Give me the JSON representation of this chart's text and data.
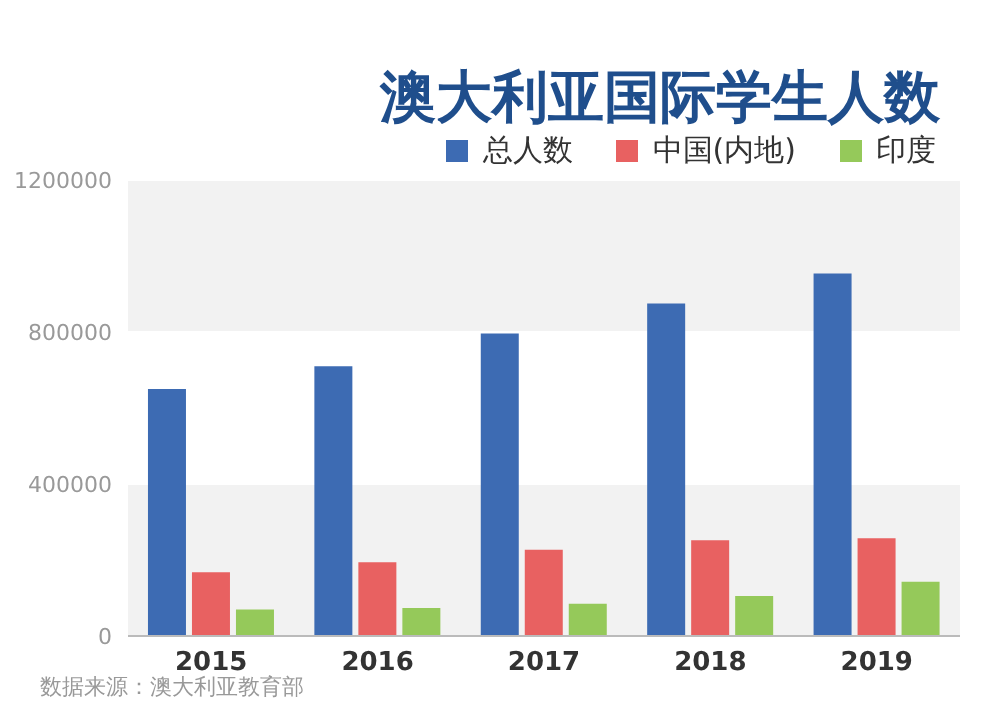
{
  "chart_data": {
    "type": "bar",
    "title": "澳大利亚国际学生人数",
    "categories": [
      "2015",
      "2016",
      "2017",
      "2018",
      "2019"
    ],
    "series": [
      {
        "name": "总人数",
        "color": "#3d6bb3",
        "values": [
          650000,
          710000,
          796000,
          875000,
          954000
        ]
      },
      {
        "name": "中国(内地)",
        "color": "#e86161",
        "values": [
          168000,
          194000,
          227000,
          252000,
          257000
        ]
      },
      {
        "name": "印度",
        "color": "#95c95a",
        "values": [
          70000,
          74000,
          85000,
          105000,
          143000
        ]
      }
    ],
    "ylim": [
      0,
      1200000
    ],
    "yticks": [
      0,
      400000,
      800000,
      1200000
    ],
    "grid": "y",
    "legend": "top right",
    "annotations": [
      "数据来源：澳大利亚教育部"
    ]
  }
}
